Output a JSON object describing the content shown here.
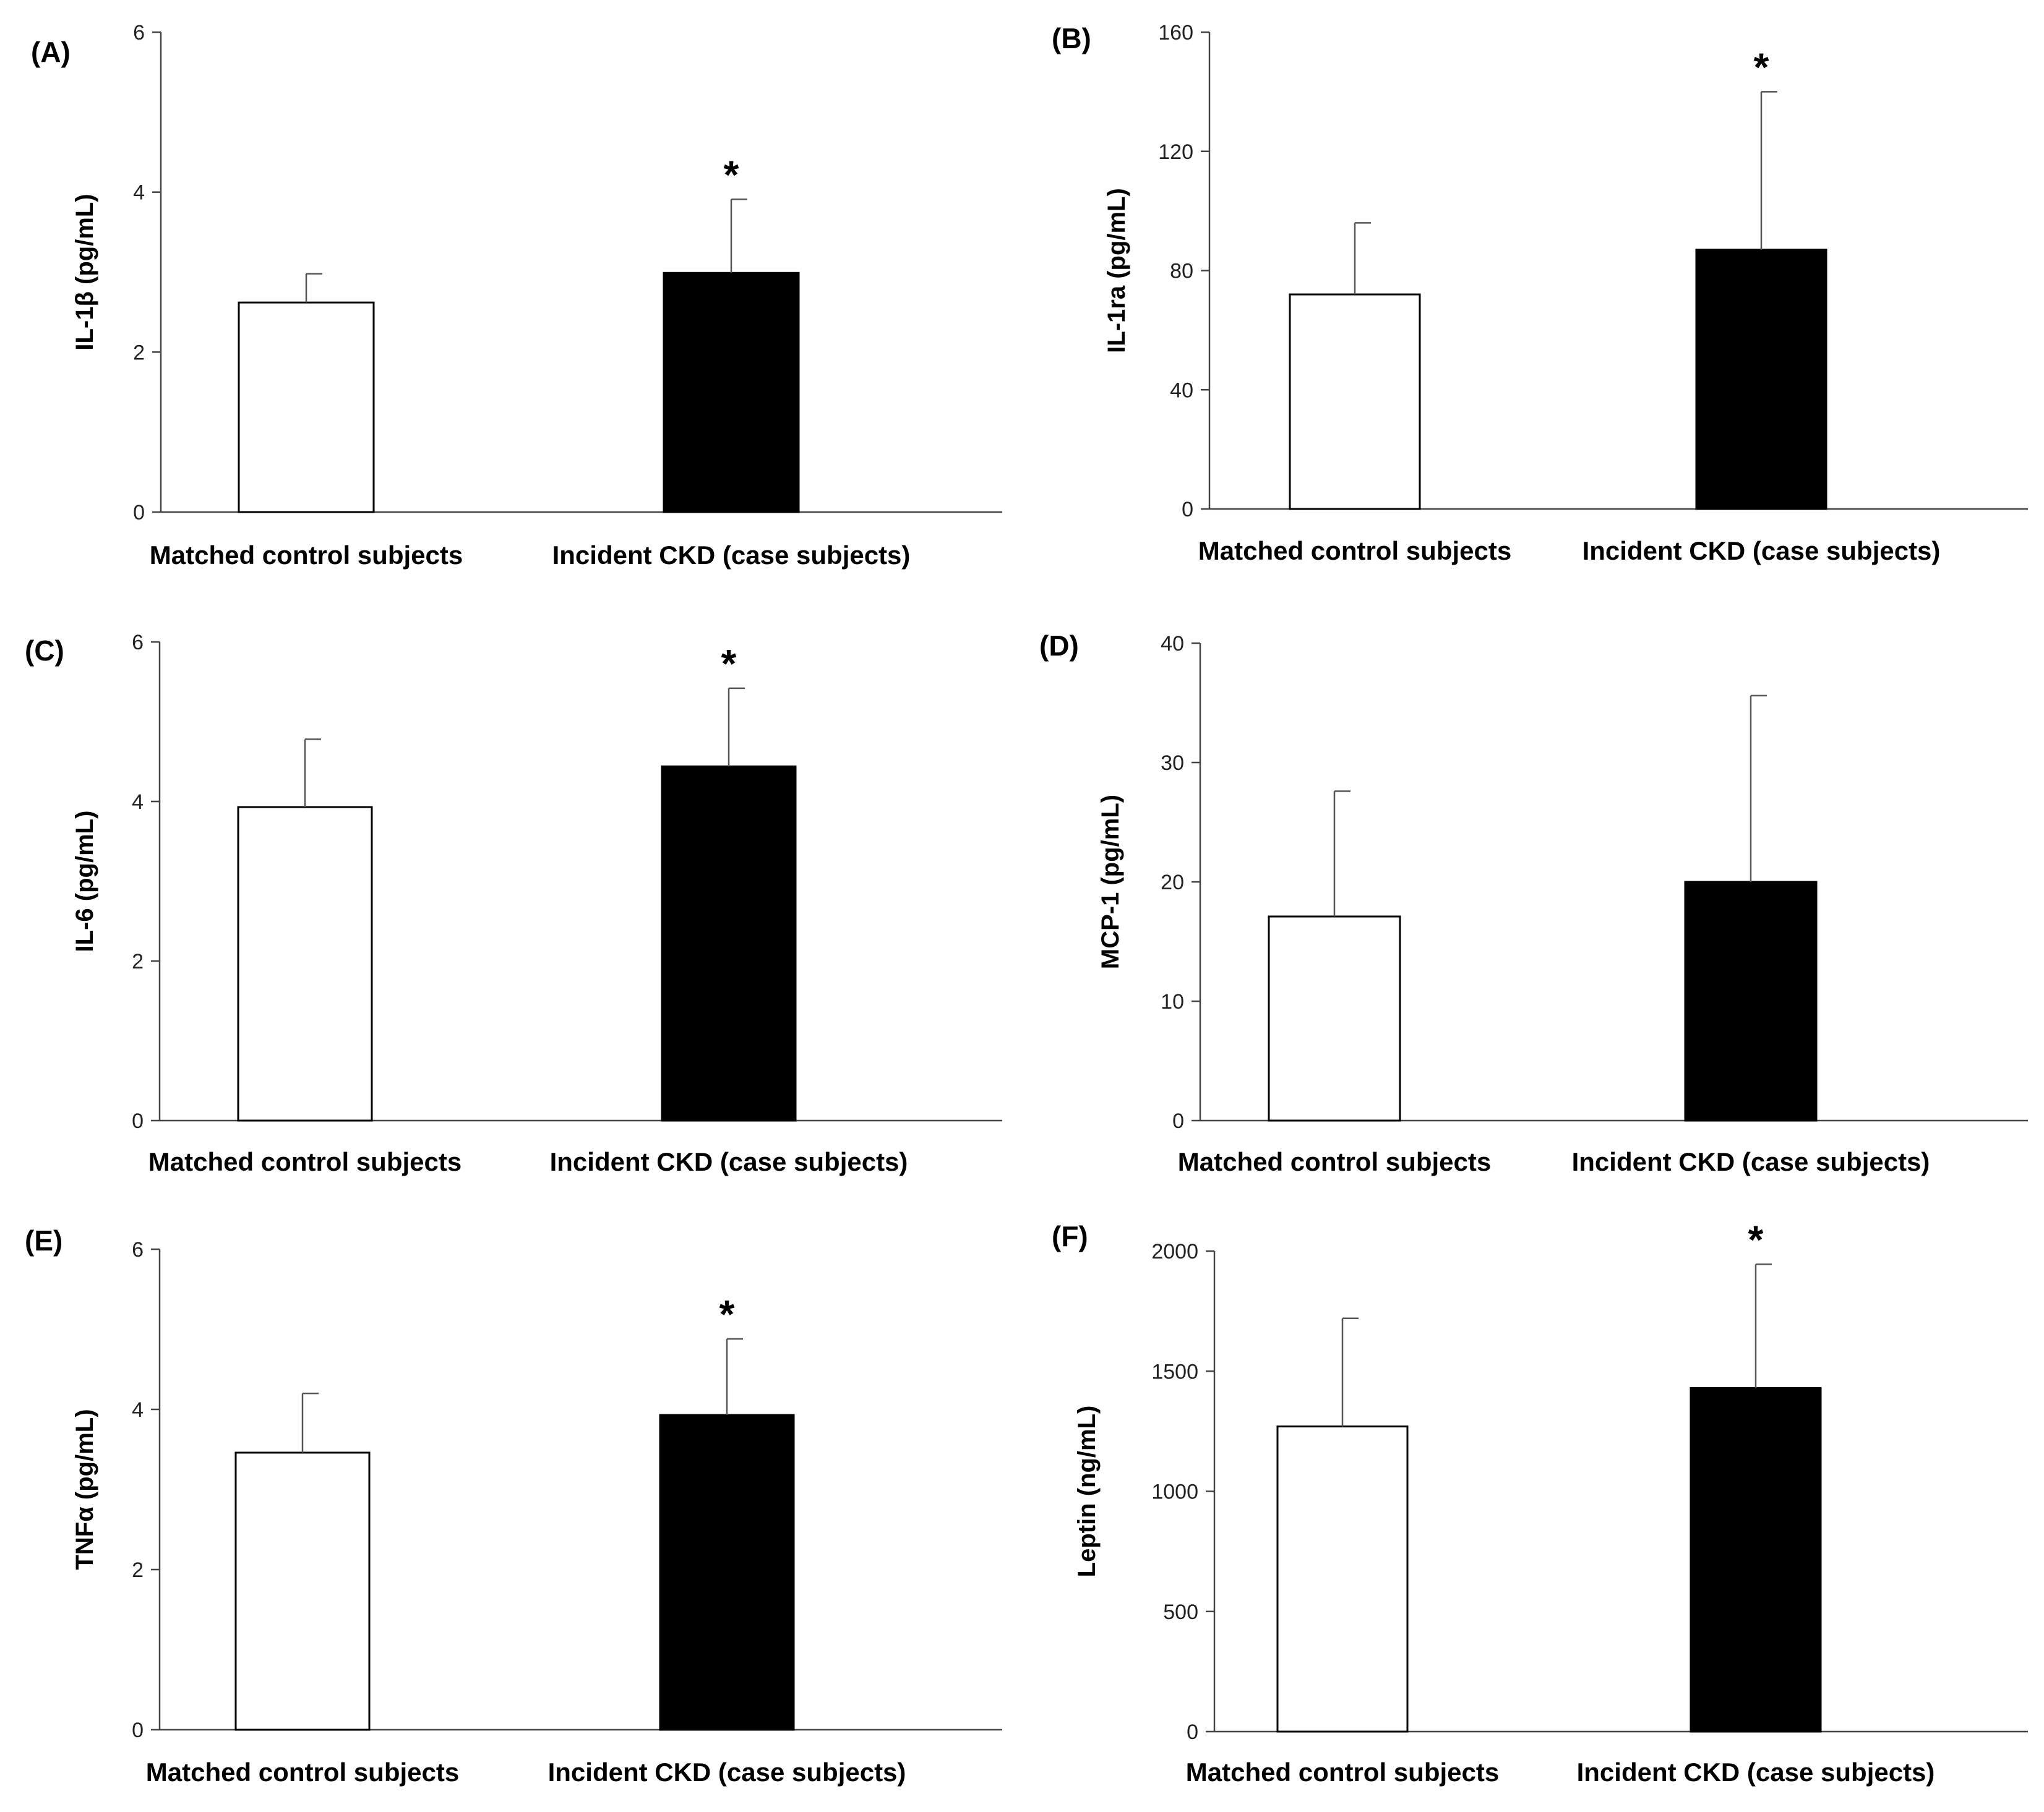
{
  "chart_data": [
    {
      "type": "bar",
      "panel": "(A)",
      "ylabel": "IL-1β (pg/mL)",
      "categories": [
        "Matched control subjects",
        "Incident CKD (case subjects)"
      ],
      "values": [
        2.62,
        2.99
      ],
      "errors": [
        0.36,
        0.92
      ],
      "fills": [
        "#ffffff",
        "#000000"
      ],
      "significant": [
        false,
        true
      ],
      "sig_marker": "*",
      "ylim": [
        0,
        6
      ],
      "yticks": [
        0,
        2,
        4,
        6
      ]
    },
    {
      "type": "bar",
      "panel": "(B)",
      "ylabel": "IL-1ra (pg/mL)",
      "categories": [
        "Matched control subjects",
        "Incident CKD (case subjects)"
      ],
      "values": [
        72,
        87
      ],
      "errors": [
        24,
        53
      ],
      "fills": [
        "#ffffff",
        "#000000"
      ],
      "significant": [
        false,
        true
      ],
      "sig_marker": "*",
      "ylim": [
        0,
        160
      ],
      "yticks": [
        0,
        40,
        80,
        120,
        160
      ]
    },
    {
      "type": "bar",
      "panel": "(C)",
      "ylabel": "IL-6 (pg/mL)",
      "categories": [
        "Matched control subjects",
        "Incident CKD (case subjects)"
      ],
      "values": [
        3.93,
        4.44
      ],
      "errors": [
        0.85,
        0.98
      ],
      "fills": [
        "#ffffff",
        "#000000"
      ],
      "significant": [
        false,
        true
      ],
      "sig_marker": "*",
      "ylim": [
        0,
        6
      ],
      "yticks": [
        0,
        2,
        4,
        6
      ]
    },
    {
      "type": "bar",
      "panel": "(D)",
      "ylabel": "MCP-1 (pg/mL)",
      "categories": [
        "Matched control subjects",
        "Incident CKD (case subjects)"
      ],
      "values": [
        17.1,
        20.0
      ],
      "errors": [
        10.5,
        15.6
      ],
      "fills": [
        "#ffffff",
        "#000000"
      ],
      "significant": [
        false,
        false
      ],
      "sig_marker": "*",
      "ylim": [
        0,
        40
      ],
      "yticks": [
        0,
        10,
        20,
        30,
        40
      ]
    },
    {
      "type": "bar",
      "panel": "(E)",
      "ylabel": "TNFα (pg/mL)",
      "categories": [
        "Matched control subjects",
        "Incident CKD (case subjects)"
      ],
      "values": [
        3.46,
        3.93
      ],
      "errors": [
        0.74,
        0.95
      ],
      "fills": [
        "#ffffff",
        "#000000"
      ],
      "significant": [
        false,
        true
      ],
      "sig_marker": "*",
      "ylim": [
        0,
        6
      ],
      "yticks": [
        0,
        2,
        4,
        6
      ]
    },
    {
      "type": "bar",
      "panel": "(F)",
      "ylabel": "Leptin (ng/mL)",
      "categories": [
        "Matched control subjects",
        "Incident CKD (case subjects)"
      ],
      "values": [
        1270,
        1430
      ],
      "errors": [
        450,
        515
      ],
      "fills": [
        "#ffffff",
        "#000000"
      ],
      "significant": [
        false,
        true
      ],
      "sig_marker": "*",
      "ylim": [
        0,
        2000
      ],
      "yticks": [
        0,
        500,
        1000,
        1500,
        2000
      ]
    }
  ]
}
